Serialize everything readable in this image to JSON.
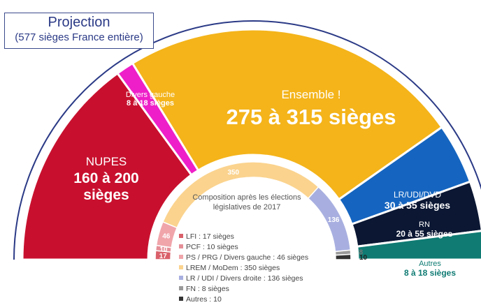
{
  "projection": {
    "title": "Projection",
    "subtitle": "(577 sièges France entière)"
  },
  "chart_data": [
    {
      "type": "pie",
      "shape": "half-donut (hemicycle)",
      "title": "Projection",
      "slices": [
        {
          "name": "NUPES",
          "range": "160 à 200",
          "unit": "sièges",
          "min": 160,
          "max": 200,
          "angle_share": 0.3,
          "color": "#c8102e"
        },
        {
          "name": "Divers gauche",
          "range": "8 à 18 sièges",
          "min": 8,
          "max": 18,
          "angle_share": 0.025,
          "color": "#ee1fc8"
        },
        {
          "name": "Ensemble !",
          "range": "275 à 315 sièges",
          "min": 275,
          "max": 315,
          "angle_share": 0.48,
          "color": "#f4b41a"
        },
        {
          "name": "LR/UDI/DVD",
          "range": "30 à 55 sièges",
          "min": 30,
          "max": 55,
          "angle_share": 0.085,
          "color": "#1565c0"
        },
        {
          "name": "RN",
          "range": "20 à 55 sièges",
          "min": 20,
          "max": 55,
          "angle_share": 0.07,
          "color": "#0b1733"
        },
        {
          "name": "Autres",
          "range": "8 à 18 sièges",
          "min": 8,
          "max": 18,
          "angle_share": 0.04,
          "color": "#0f7b73"
        }
      ]
    },
    {
      "type": "pie",
      "shape": "half-donut (hemicycle)",
      "title": "Composition après les élections législatives de 2017",
      "slices": [
        {
          "name": "LFI",
          "value": 17,
          "label": "17",
          "color": "#d9606a"
        },
        {
          "name": "PCF",
          "value": 10,
          "label": "10",
          "color": "#e58f97"
        },
        {
          "name": "PS / PRG / Divers gauche",
          "value": 46,
          "label": "46",
          "color": "#f0a5ab"
        },
        {
          "name": "LREM / MoDem",
          "value": 350,
          "label": "350",
          "color": "#fbd38e"
        },
        {
          "name": "LR / UDI / Divers droite",
          "value": 136,
          "label": "136",
          "color": "#a8afe0"
        },
        {
          "name": "FN",
          "value": 8,
          "label": "8",
          "color": "#9a9a9a"
        },
        {
          "name": "Autres",
          "value": 10,
          "label": "10",
          "color": "#333333"
        }
      ],
      "legend": [
        "LFI : 17 sièges",
        "PCF : 10 sièges",
        "PS / PRG / Divers gauche : 46 sièges",
        "LREM / MoDem : 350 sièges",
        "LR / UDI / Divers droite : 136 sièges",
        "FN : 8 sièges",
        "Autres : 10"
      ]
    }
  ]
}
